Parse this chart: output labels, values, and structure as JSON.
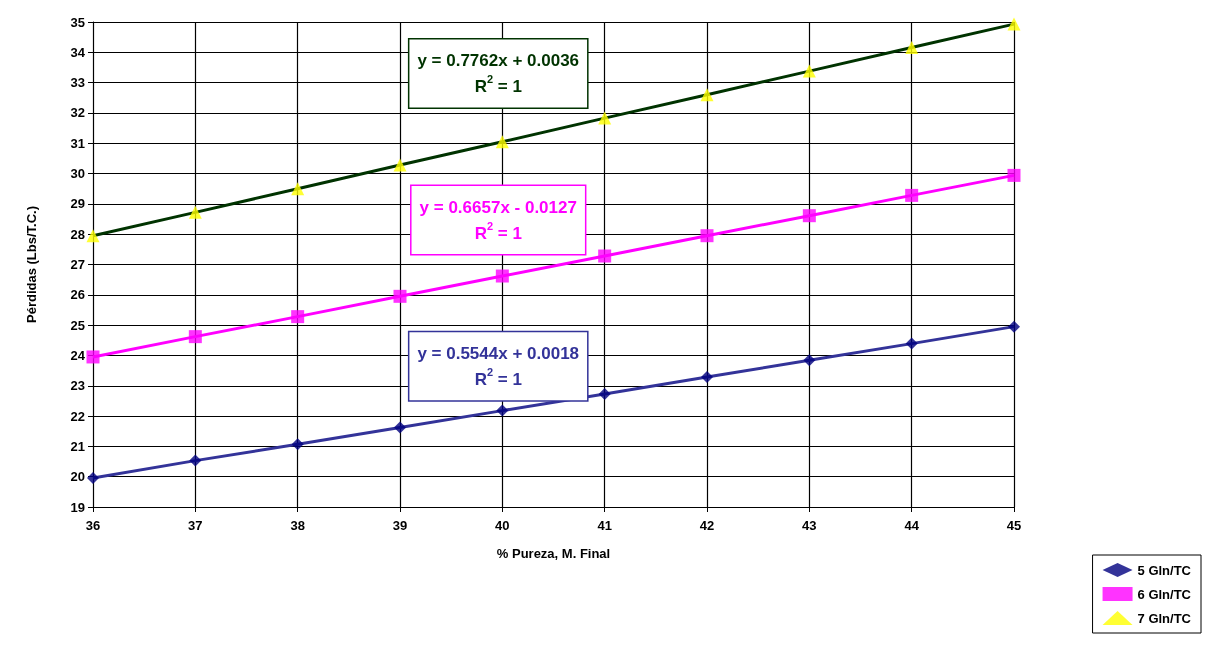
{
  "chart_data": {
    "type": "scatter",
    "xlabel": "% Pureza, M. Final",
    "ylabel": "Pérdidas (Lbs/T.C.)",
    "x": [
      36,
      37,
      38,
      39,
      40,
      41,
      42,
      43,
      44,
      45
    ],
    "series": [
      {
        "name": "5 Gln/TC",
        "color": "#000080",
        "marker": "diamond",
        "values": [
          19.96,
          20.53,
          21.07,
          21.62,
          22.18,
          22.73,
          23.29,
          23.84,
          24.39,
          24.95
        ]
      },
      {
        "name": "6 Gln/TC",
        "color": "#ff00ff",
        "marker": "square",
        "values": [
          23.95,
          24.62,
          25.28,
          25.95,
          26.62,
          27.28,
          27.95,
          28.61,
          29.28,
          29.94
        ]
      },
      {
        "name": "7 Gln/TC",
        "color": "#ffff00",
        "marker": "triangle",
        "values": [
          27.95,
          28.72,
          29.5,
          30.28,
          31.05,
          31.83,
          32.6,
          33.38,
          34.16,
          34.93
        ]
      },
      {
        "type": "line",
        "color": "#333399",
        "values": [
          19.96,
          20.53,
          21.07,
          21.62,
          22.18,
          22.73,
          23.29,
          23.84,
          24.39,
          24.95
        ]
      },
      {
        "type": "line",
        "color": "#ff00ff",
        "values": [
          23.95,
          24.62,
          25.28,
          25.95,
          26.62,
          27.28,
          27.95,
          28.61,
          29.28,
          29.94
        ]
      },
      {
        "type": "line",
        "color": "#003300",
        "values": [
          27.95,
          28.72,
          29.5,
          30.28,
          31.05,
          31.83,
          32.6,
          33.38,
          34.16,
          34.93
        ]
      }
    ],
    "annotations": [
      "y = 0.5544x + 0.0018\nR$^{2}$ = 1",
      "y = 0.6657x - 0.0127\nR$^{2}$ = 1",
      "y = 0.7762x + 0.0036\nR$^{2}$ = 1"
    ],
    "xlim": [
      36,
      45
    ],
    "xticks": [
      36,
      37,
      38,
      39,
      40,
      41,
      42,
      43,
      44,
      45
    ],
    "ylim": [
      19,
      35
    ],
    "yticks": [
      19,
      20,
      21,
      22,
      23,
      24,
      25,
      26,
      27,
      28,
      29,
      30,
      31,
      32,
      33,
      34,
      35
    ],
    "grid": true,
    "legend": "bottom right"
  }
}
